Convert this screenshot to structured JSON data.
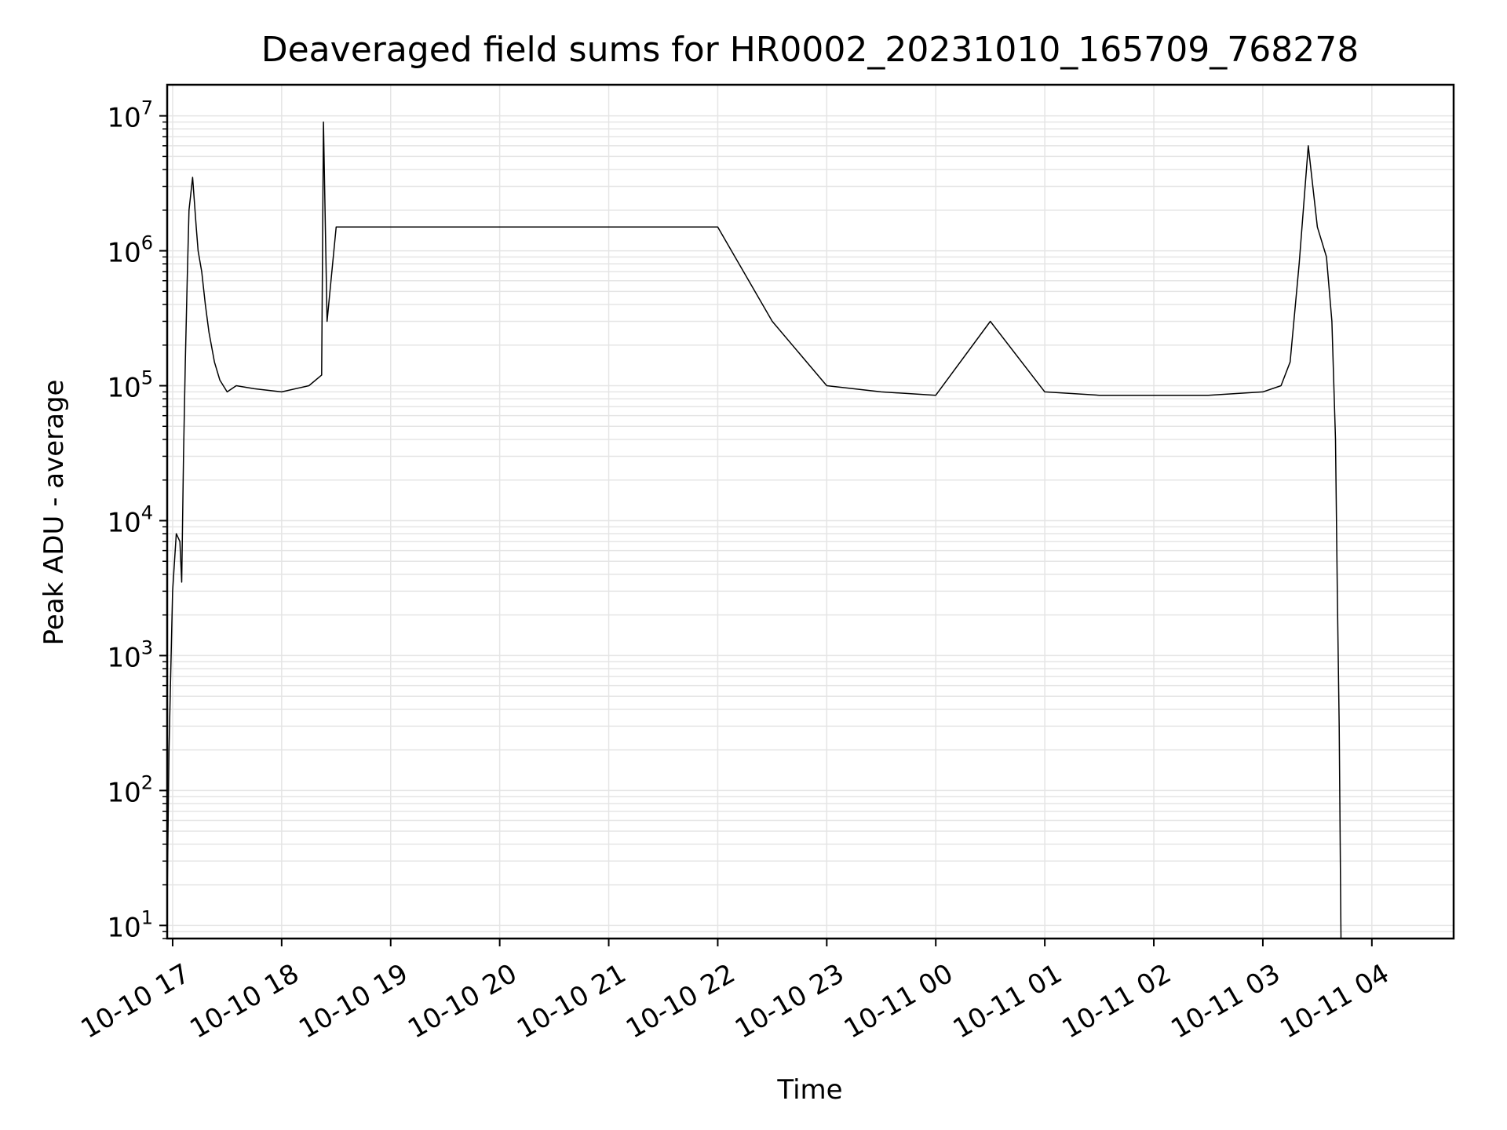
{
  "chart_data": {
    "type": "line",
    "title": "Deaveraged field sums for HR0002_20231010_165709_768278",
    "xlabel": "Time",
    "ylabel": "Peak ADU - average",
    "y_scale": "log",
    "ylim": [
      8,
      17000000
    ],
    "xlim": [
      "2023-10-10T16:57",
      "2023-10-11T04:45"
    ],
    "grid": true,
    "line_color": "#000000",
    "grid_color": "#e5e5e5",
    "x_ticks": [
      {
        "t": "2023-10-10T17:00",
        "label": "10-10 17"
      },
      {
        "t": "2023-10-10T18:00",
        "label": "10-10 18"
      },
      {
        "t": "2023-10-10T19:00",
        "label": "10-10 19"
      },
      {
        "t": "2023-10-10T20:00",
        "label": "10-10 20"
      },
      {
        "t": "2023-10-10T21:00",
        "label": "10-10 21"
      },
      {
        "t": "2023-10-10T22:00",
        "label": "10-10 22"
      },
      {
        "t": "2023-10-10T23:00",
        "label": "10-10 23"
      },
      {
        "t": "2023-10-11T00:00",
        "label": "10-11 00"
      },
      {
        "t": "2023-10-11T01:00",
        "label": "10-11 01"
      },
      {
        "t": "2023-10-11T02:00",
        "label": "10-11 02"
      },
      {
        "t": "2023-10-11T03:00",
        "label": "10-11 03"
      },
      {
        "t": "2023-10-11T04:00",
        "label": "10-11 04"
      }
    ],
    "y_ticks": [
      {
        "value": 10,
        "base": "10",
        "exp": "1"
      },
      {
        "value": 100,
        "base": "10",
        "exp": "2"
      },
      {
        "value": 1000,
        "base": "10",
        "exp": "3"
      },
      {
        "value": 10000,
        "base": "10",
        "exp": "4"
      },
      {
        "value": 100000,
        "base": "10",
        "exp": "5"
      },
      {
        "value": 1000000,
        "base": "10",
        "exp": "6"
      },
      {
        "value": 10000000,
        "base": "10",
        "exp": "7"
      }
    ],
    "series": [
      {
        "type": "line",
        "x": [
          "2023-10-10T16:57",
          "2023-10-10T16:58",
          "2023-10-10T17:00",
          "2023-10-10T17:02",
          "2023-10-10T17:04",
          "2023-10-10T17:05",
          "2023-10-10T17:06",
          "2023-10-10T17:07",
          "2023-10-10T17:08",
          "2023-10-10T17:09",
          "2023-10-10T17:11",
          "2023-10-10T17:13",
          "2023-10-10T17:14",
          "2023-10-10T17:16",
          "2023-10-10T17:18",
          "2023-10-10T17:20",
          "2023-10-10T17:23",
          "2023-10-10T17:26",
          "2023-10-10T17:30",
          "2023-10-10T17:35",
          "2023-10-10T17:45",
          "2023-10-10T18:00",
          "2023-10-10T18:15",
          "2023-10-10T18:22",
          "2023-10-10T18:23",
          "2023-10-10T18:25",
          "2023-10-10T18:30",
          "2023-10-10T19:00",
          "2023-10-10T19:30",
          "2023-10-10T20:00",
          "2023-10-10T20:30",
          "2023-10-10T21:00",
          "2023-10-10T21:30",
          "2023-10-10T22:00",
          "2023-10-10T22:30",
          "2023-10-10T23:00",
          "2023-10-10T23:30",
          "2023-10-11T00:00",
          "2023-10-11T00:30",
          "2023-10-11T01:00",
          "2023-10-11T01:30",
          "2023-10-11T02:00",
          "2023-10-11T02:30",
          "2023-10-11T03:00",
          "2023-10-11T03:10",
          "2023-10-11T03:15",
          "2023-10-11T03:20",
          "2023-10-11T03:25",
          "2023-10-11T03:30",
          "2023-10-11T03:35",
          "2023-10-11T03:38",
          "2023-10-11T03:40",
          "2023-10-11T03:41",
          "2023-10-11T03:42",
          "2023-10-11T03:43"
        ],
        "y": [
          15,
          200,
          3000,
          8000,
          7000,
          3500,
          30000,
          150000,
          600000,
          2000000,
          3500000,
          1500000,
          1000000,
          700000,
          400000,
          250000,
          150000,
          110000,
          90000,
          100000,
          95000,
          90000,
          100000,
          120000,
          9000000,
          300000,
          1500000,
          1500000,
          1500000,
          1500000,
          1500000,
          1500000,
          1500000,
          1500000,
          300000,
          100000,
          90000,
          85000,
          300000,
          90000,
          85000,
          85000,
          85000,
          90000,
          100000,
          150000,
          800000,
          6000000,
          1500000,
          900000,
          300000,
          40000,
          3000,
          300,
          8
        ]
      }
    ]
  }
}
